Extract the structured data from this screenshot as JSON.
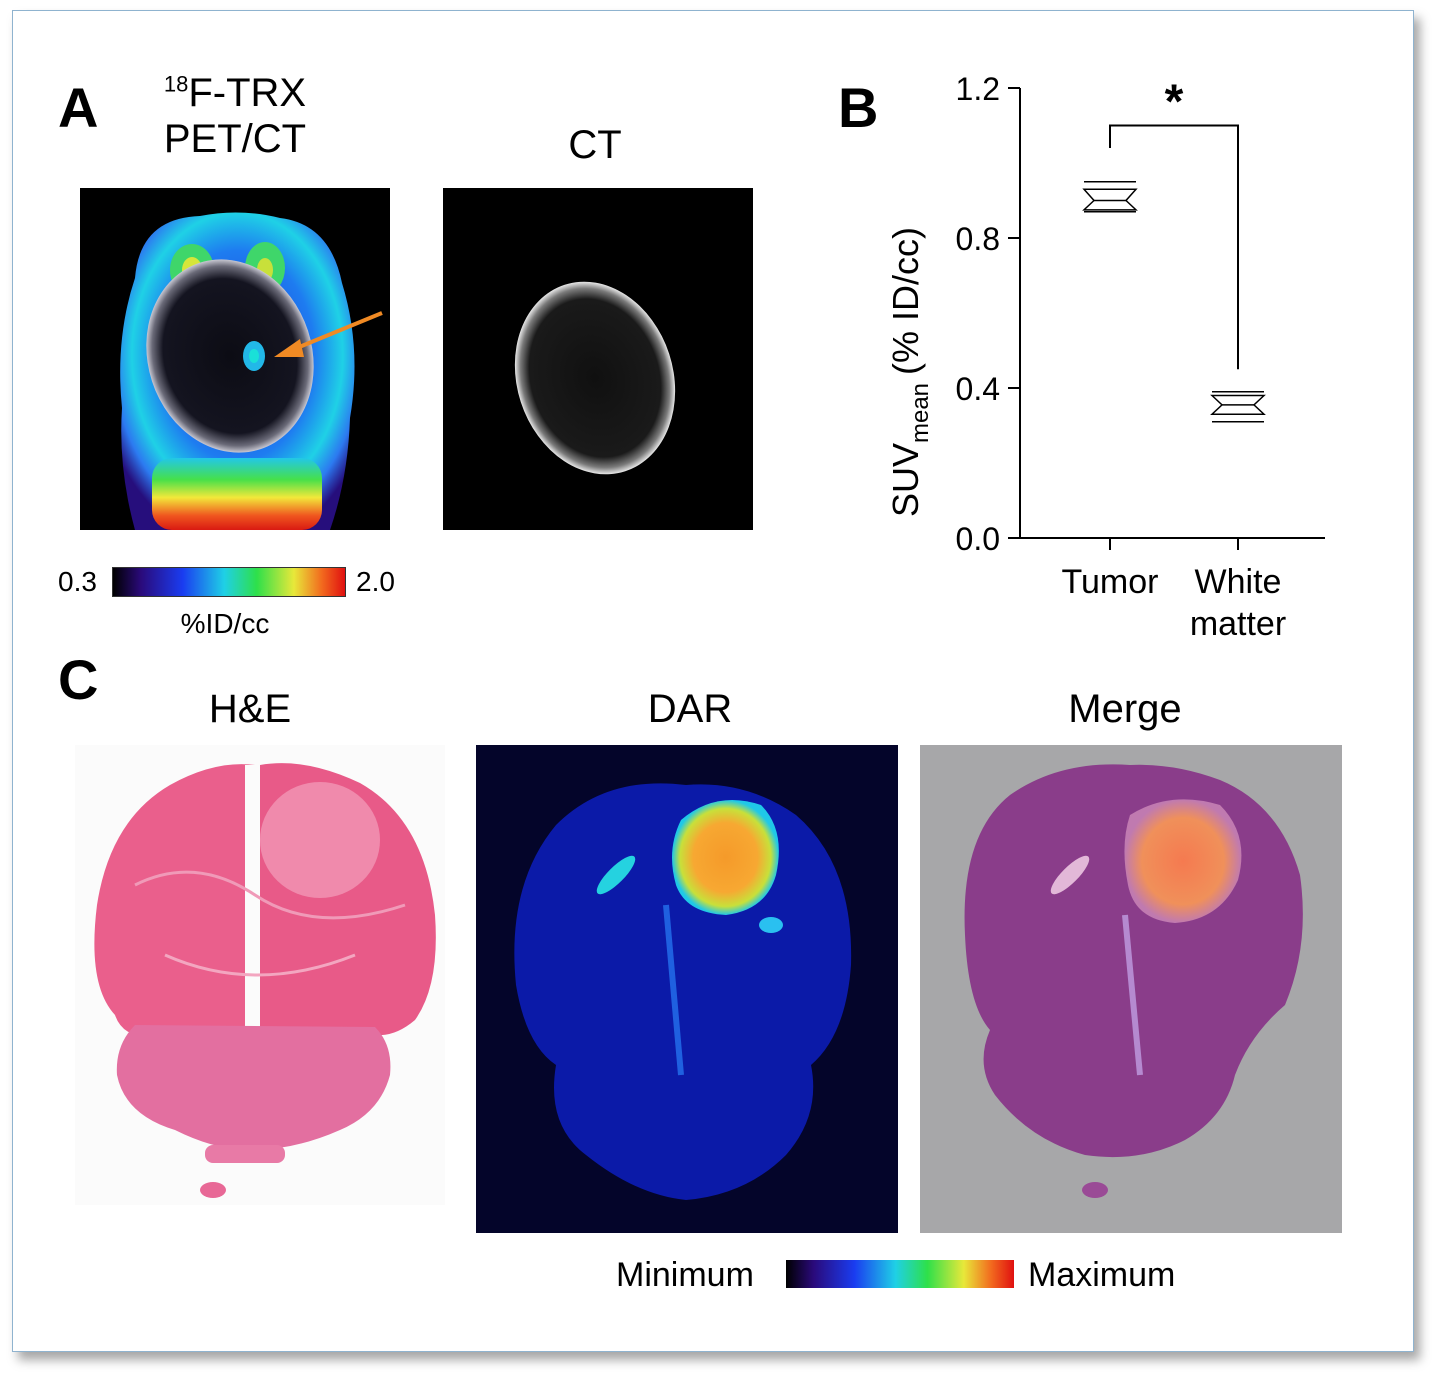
{
  "panel_a": {
    "letter": "A",
    "pet_title_sup": "18",
    "pet_title_line1": "F-TRX",
    "pet_title_line2": "PET/CT",
    "ct_title": "CT",
    "colorbar_min": "0.3",
    "colorbar_max": "2.0",
    "colorbar_unit": "%ID/cc",
    "arrow_color": "#f08a24"
  },
  "panel_b": {
    "letter": "B",
    "significance": "*"
  },
  "panel_c": {
    "letter": "C",
    "he_title": "H&E",
    "dar_title": "DAR",
    "merge_title": "Merge",
    "colorbar_min": "Minimum",
    "colorbar_max": "Maximum"
  },
  "chart_data": {
    "type": "box",
    "ylabel_main": "SUV",
    "ylabel_sub": "mean",
    "ylabel_unit": "(% ID/cc)",
    "ylim": [
      0,
      1.2
    ],
    "yticks": [
      "0.0",
      "0.4",
      "0.8",
      "1.2"
    ],
    "categories": [
      "Tumor",
      "White matter"
    ],
    "category_lines": [
      [
        "Tumor"
      ],
      [
        "White",
        "matter"
      ]
    ],
    "boxes": [
      {
        "category": "Tumor",
        "min": 0.87,
        "q1": 0.875,
        "median": 0.9,
        "q3": 0.93,
        "max": 0.95
      },
      {
        "category": "White matter",
        "min": 0.31,
        "q1": 0.33,
        "median": 0.355,
        "q3": 0.38,
        "max": 0.39
      }
    ],
    "bracket": {
      "left_y": 1.04,
      "right_y": 0.45,
      "top_y": 1.1,
      "label": "*"
    },
    "grid": false
  }
}
